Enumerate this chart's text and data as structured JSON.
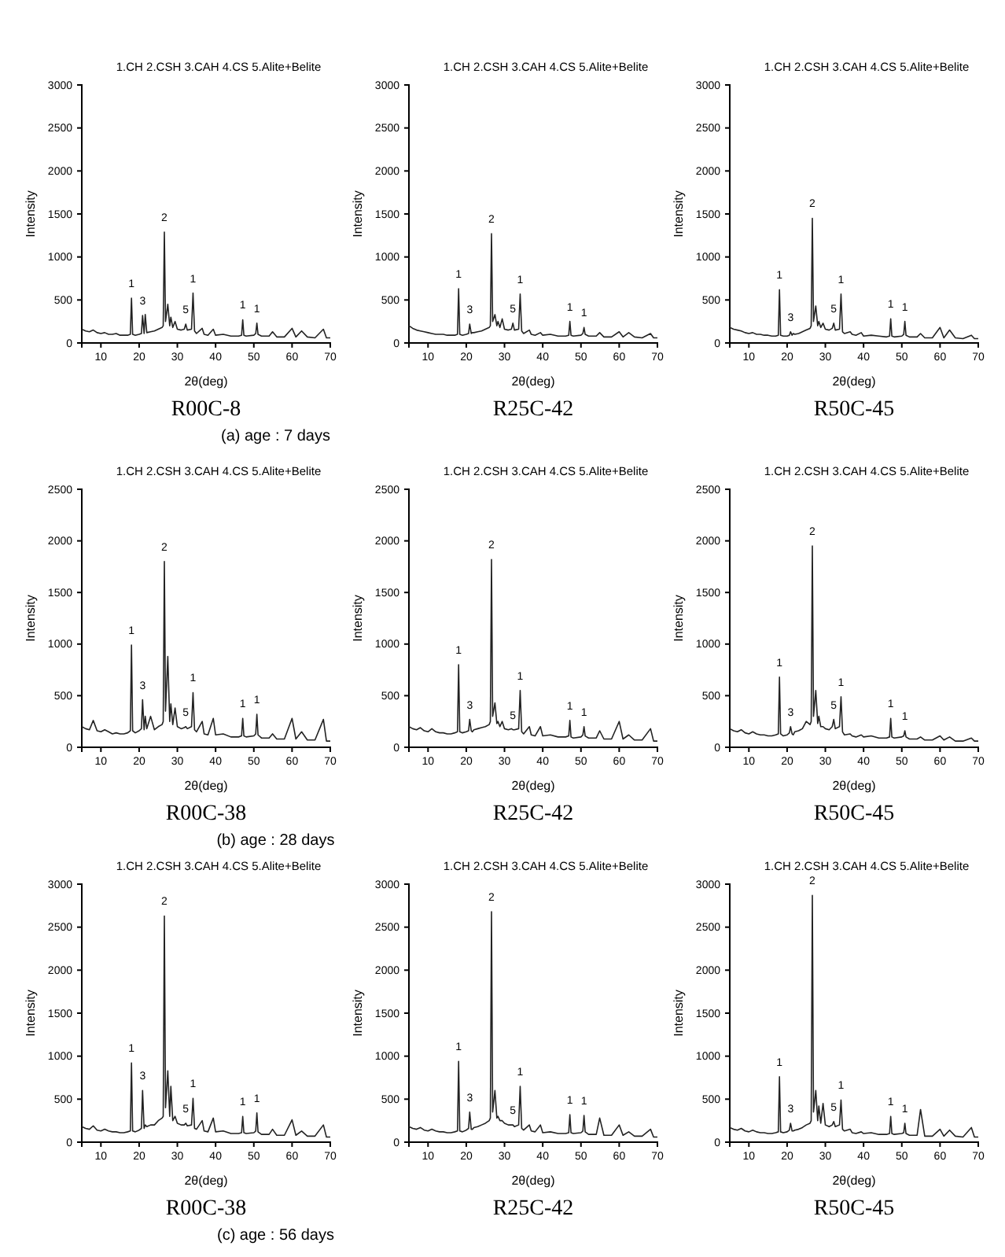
{
  "chart_data": [
    {
      "type": "line",
      "title": "R00C-8",
      "subtitle": "1.CH 2.CSH 3.CAH 4.CS 5.Alite+Belite",
      "xlabel": "2θ(deg)",
      "ylabel": "Intensity",
      "xlim": [
        5,
        70
      ],
      "ylim": [
        0,
        3000
      ],
      "xticks": [
        10,
        20,
        30,
        40,
        50,
        60,
        70
      ],
      "yticks": [
        0,
        500,
        1000,
        1500,
        2000,
        2500,
        3000
      ],
      "x": [
        5,
        6,
        7,
        8,
        9,
        10,
        11,
        12,
        13,
        14,
        15,
        16,
        17,
        17.7,
        18,
        18.3,
        19,
        20,
        20.6,
        20.9,
        21.3,
        21.6,
        22,
        23,
        24,
        25,
        26,
        26.3,
        26.6,
        26.9,
        27.5,
        28.0,
        28.3,
        28.8,
        29.4,
        30,
        31,
        31.8,
        32.2,
        32.6,
        33.7,
        34.1,
        34.5,
        35,
        36.5,
        37,
        38,
        39.4,
        40,
        42,
        44,
        46,
        46.8,
        47.1,
        47.4,
        48,
        50,
        50.5,
        50.8,
        51.1,
        52,
        54,
        54.9,
        56,
        58,
        60,
        61,
        62.5,
        64,
        66,
        68.2,
        69,
        70
      ],
      "series": [
        {
          "color": "#222222",
          "values": [
            160,
            140,
            130,
            150,
            120,
            110,
            120,
            100,
            100,
            110,
            90,
            90,
            90,
            100,
            520,
            100,
            90,
            100,
            110,
            320,
            110,
            330,
            120,
            130,
            140,
            160,
            180,
            200,
            1290,
            250,
            450,
            200,
            300,
            180,
            250,
            160,
            150,
            160,
            220,
            150,
            160,
            580,
            140,
            110,
            170,
            100,
            90,
            160,
            90,
            100,
            80,
            80,
            90,
            270,
            90,
            80,
            90,
            110,
            230,
            100,
            80,
            80,
            130,
            70,
            70,
            170,
            70,
            140,
            70,
            60,
            160,
            60,
            60
          ]
        }
      ],
      "annotations": [
        {
          "text": "1",
          "x": 18,
          "y": 520
        },
        {
          "text": "3",
          "x": 20.9,
          "y": 320
        },
        {
          "text": "2",
          "x": 26.6,
          "y": 1290
        },
        {
          "text": "5",
          "x": 32.2,
          "y": 220
        },
        {
          "text": "1",
          "x": 34.1,
          "y": 580
        },
        {
          "text": "1",
          "x": 47.1,
          "y": 270
        },
        {
          "text": "1",
          "x": 50.8,
          "y": 230
        },
        "(a) age : 7 days"
      ]
    },
    {
      "type": "line",
      "title": "R25C-42",
      "subtitle": "1.CH 2.CSH 3.CAH 4.CS 5.Alite+Belite",
      "xlabel": "2θ(deg)",
      "ylabel": "Intensity",
      "xlim": [
        5,
        70
      ],
      "ylim": [
        0,
        3000
      ],
      "xticks": [
        10,
        20,
        30,
        40,
        50,
        60,
        70
      ],
      "yticks": [
        0,
        500,
        1000,
        1500,
        2000,
        2500,
        3000
      ],
      "x": [
        5,
        6,
        7,
        8,
        9,
        10,
        11,
        12,
        13,
        14,
        15,
        16,
        17,
        17.7,
        18,
        18.3,
        19,
        20,
        20.6,
        20.9,
        21.3,
        21.6,
        22,
        23,
        24,
        25,
        26,
        26.3,
        26.6,
        26.9,
        27.5,
        28.0,
        28.3,
        28.8,
        29.4,
        30,
        31,
        31.8,
        32.2,
        32.6,
        33.7,
        34.1,
        34.5,
        35,
        36.5,
        37,
        38,
        39.4,
        40,
        42,
        44,
        46,
        46.8,
        47.1,
        47.4,
        48,
        50,
        50.5,
        50.8,
        51.1,
        52,
        54,
        54.9,
        56,
        58,
        60,
        61,
        62.5,
        64,
        66,
        68.2,
        69,
        70
      ],
      "series": [
        {
          "color": "#222222",
          "values": [
            200,
            170,
            150,
            140,
            130,
            120,
            110,
            100,
            100,
            100,
            90,
            90,
            90,
            100,
            630,
            100,
            90,
            100,
            110,
            220,
            110,
            120,
            120,
            130,
            140,
            160,
            180,
            200,
            1270,
            250,
            330,
            200,
            250,
            180,
            280,
            160,
            150,
            160,
            230,
            150,
            160,
            570,
            140,
            110,
            150,
            100,
            90,
            120,
            90,
            100,
            80,
            80,
            90,
            250,
            90,
            80,
            90,
            110,
            180,
            100,
            80,
            80,
            120,
            70,
            70,
            130,
            70,
            120,
            70,
            60,
            110,
            60,
            60
          ]
        }
      ],
      "annotations": [
        {
          "text": "1",
          "x": 18,
          "y": 630
        },
        {
          "text": "3",
          "x": 20.9,
          "y": 220
        },
        {
          "text": "2",
          "x": 26.6,
          "y": 1270
        },
        {
          "text": "5",
          "x": 32.2,
          "y": 230
        },
        {
          "text": "1",
          "x": 34.1,
          "y": 570
        },
        {
          "text": "1",
          "x": 47.1,
          "y": 250
        },
        {
          "text": "1",
          "x": 50.8,
          "y": 180
        }
      ]
    },
    {
      "type": "line",
      "title": "R50C-45",
      "subtitle": "1.CH 2.CSH 3.CAH 4.CS 5.Alite+Belite",
      "xlabel": "2θ(deg)",
      "ylabel": "Intensity",
      "xlim": [
        5,
        70
      ],
      "ylim": [
        0,
        3000
      ],
      "xticks": [
        10,
        20,
        30,
        40,
        50,
        60,
        70
      ],
      "yticks": [
        0,
        500,
        1000,
        1500,
        2000,
        2500,
        3000
      ],
      "x": [
        5,
        6,
        7,
        8,
        9,
        10,
        11,
        12,
        13,
        14,
        15,
        16,
        17,
        17.7,
        18,
        18.3,
        19,
        20,
        20.6,
        20.9,
        21.3,
        21.6,
        22,
        23,
        24,
        25,
        26,
        26.3,
        26.6,
        26.9,
        27.5,
        28.0,
        28.3,
        28.8,
        29.4,
        30,
        31,
        31.8,
        32.2,
        32.6,
        33.7,
        34.1,
        34.5,
        35,
        36.5,
        37,
        38,
        39.4,
        40,
        42,
        44,
        46,
        46.8,
        47.1,
        47.4,
        48,
        50,
        50.5,
        50.8,
        51.1,
        52,
        54,
        54.9,
        56,
        58,
        60,
        61,
        62.5,
        64,
        66,
        68.2,
        69,
        70
      ],
      "series": [
        {
          "color": "#222222",
          "values": [
            180,
            160,
            150,
            140,
            120,
            110,
            120,
            100,
            100,
            90,
            90,
            80,
            80,
            90,
            620,
            90,
            80,
            80,
            90,
            130,
            90,
            110,
            100,
            110,
            130,
            150,
            170,
            200,
            1450,
            250,
            430,
            200,
            250,
            180,
            230,
            160,
            150,
            170,
            230,
            150,
            160,
            570,
            130,
            110,
            130,
            100,
            90,
            120,
            80,
            90,
            80,
            70,
            80,
            280,
            80,
            70,
            80,
            100,
            250,
            90,
            70,
            70,
            110,
            60,
            60,
            180,
            60,
            150,
            60,
            50,
            90,
            50,
            50
          ]
        }
      ],
      "annotations": [
        {
          "text": "1",
          "x": 18,
          "y": 620
        },
        {
          "text": "3",
          "x": 20.9,
          "y": 130
        },
        {
          "text": "2",
          "x": 26.6,
          "y": 1450
        },
        {
          "text": "5",
          "x": 32.2,
          "y": 230
        },
        {
          "text": "1",
          "x": 34.1,
          "y": 570
        },
        {
          "text": "1",
          "x": 47.1,
          "y": 280
        },
        {
          "text": "1",
          "x": 50.8,
          "y": 250
        }
      ]
    },
    {
      "type": "line",
      "title": "R00C-38",
      "subtitle": "1.CH 2.CSH 3.CAH 4.CS 5.Alite+Belite",
      "xlabel": "2θ(deg)",
      "ylabel": "Intensity",
      "xlim": [
        5,
        70
      ],
      "ylim": [
        0,
        2500
      ],
      "xticks": [
        10,
        20,
        30,
        40,
        50,
        60,
        70
      ],
      "yticks": [
        0,
        500,
        1000,
        1500,
        2000,
        2500
      ],
      "x": [
        5,
        6,
        7,
        8,
        9,
        10,
        11,
        12,
        13,
        14,
        15,
        16,
        17,
        17.7,
        18,
        18.3,
        19,
        20,
        20.6,
        20.9,
        21.3,
        21.6,
        22,
        23,
        24,
        25,
        26,
        26.3,
        26.6,
        26.9,
        27.5,
        28.0,
        28.3,
        28.8,
        29.4,
        30,
        31,
        31.8,
        32.2,
        32.6,
        33.7,
        34.1,
        34.5,
        35,
        36.5,
        37,
        38,
        39.4,
        40,
        42,
        44,
        46,
        46.8,
        47.1,
        47.4,
        48,
        50,
        50.5,
        50.8,
        51.1,
        52,
        54,
        54.9,
        56,
        58,
        60,
        61,
        62.5,
        64,
        66,
        68.2,
        69,
        70
      ],
      "series": [
        {
          "color": "#222222",
          "values": [
            200,
            180,
            170,
            260,
            160,
            150,
            170,
            150,
            130,
            140,
            130,
            130,
            140,
            160,
            990,
            160,
            140,
            160,
            180,
            460,
            170,
            300,
            180,
            300,
            170,
            200,
            220,
            250,
            1800,
            350,
            880,
            250,
            420,
            220,
            380,
            200,
            180,
            190,
            200,
            180,
            200,
            530,
            170,
            150,
            250,
            130,
            120,
            280,
            120,
            130,
            100,
            100,
            110,
            280,
            110,
            100,
            110,
            130,
            320,
            120,
            90,
            90,
            130,
            80,
            80,
            280,
            80,
            150,
            70,
            70,
            270,
            60,
            60
          ]
        }
      ],
      "annotations": [
        {
          "text": "1",
          "x": 18,
          "y": 990
        },
        {
          "text": "3",
          "x": 20.9,
          "y": 460
        },
        {
          "text": "2",
          "x": 26.6,
          "y": 1800
        },
        {
          "text": "5",
          "x": 32.2,
          "y": 200
        },
        {
          "text": "1",
          "x": 34.1,
          "y": 530
        },
        {
          "text": "1",
          "x": 47.1,
          "y": 280
        },
        {
          "text": "1",
          "x": 50.8,
          "y": 320
        },
        "(b) age : 28 days"
      ]
    },
    {
      "type": "line",
      "title": "R25C-42",
      "subtitle": "1.CH 2.CSH 3.CAH 4.CS 5.Alite+Belite",
      "xlabel": "2θ(deg)",
      "ylabel": "Intensity",
      "xlim": [
        5,
        70
      ],
      "ylim": [
        0,
        2500
      ],
      "xticks": [
        10,
        20,
        30,
        40,
        50,
        60,
        70
      ],
      "yticks": [
        0,
        500,
        1000,
        1500,
        2000,
        2500
      ],
      "x": [
        5,
        6,
        7,
        8,
        9,
        10,
        11,
        12,
        13,
        14,
        15,
        16,
        17,
        17.7,
        18,
        18.3,
        19,
        20,
        20.6,
        20.9,
        21.3,
        21.6,
        22,
        23,
        24,
        25,
        26,
        26.3,
        26.6,
        26.9,
        27.5,
        28.0,
        28.3,
        28.8,
        29.4,
        30,
        31,
        31.8,
        32.2,
        32.6,
        33.7,
        34.1,
        34.5,
        35,
        36.5,
        37,
        38,
        39.4,
        40,
        42,
        44,
        46,
        46.8,
        47.1,
        47.4,
        48,
        50,
        50.5,
        50.8,
        51.1,
        52,
        54,
        54.9,
        56,
        58,
        60,
        61,
        62.5,
        64,
        66,
        68.2,
        69,
        70
      ],
      "series": [
        {
          "color": "#222222",
          "values": [
            200,
            180,
            170,
            190,
            160,
            150,
            180,
            150,
            140,
            140,
            130,
            130,
            140,
            150,
            800,
            150,
            140,
            150,
            160,
            270,
            160,
            150,
            170,
            180,
            190,
            200,
            220,
            250,
            1820,
            300,
            430,
            230,
            250,
            200,
            250,
            180,
            170,
            180,
            170,
            170,
            180,
            550,
            150,
            130,
            200,
            120,
            110,
            200,
            110,
            120,
            100,
            100,
            110,
            260,
            100,
            90,
            100,
            120,
            200,
            110,
            90,
            90,
            160,
            80,
            80,
            250,
            80,
            120,
            70,
            70,
            180,
            60,
            60
          ]
        }
      ],
      "annotations": [
        {
          "text": "1",
          "x": 18,
          "y": 800
        },
        {
          "text": "3",
          "x": 20.9,
          "y": 270
        },
        {
          "text": "2",
          "x": 26.6,
          "y": 1820
        },
        {
          "text": "5",
          "x": 32.2,
          "y": 170
        },
        {
          "text": "1",
          "x": 34.1,
          "y": 550
        },
        {
          "text": "1",
          "x": 47.1,
          "y": 260
        },
        {
          "text": "1",
          "x": 50.8,
          "y": 200
        }
      ]
    },
    {
      "type": "line",
      "title": "R50C-45",
      "subtitle": "1.CH 2.CSH 3.CAH 4.CS 5.Alite+Belite",
      "xlabel": "2θ(deg)",
      "ylabel": "Intensity",
      "xlim": [
        5,
        70
      ],
      "ylim": [
        0,
        2500
      ],
      "xticks": [
        10,
        20,
        30,
        40,
        50,
        60,
        70
      ],
      "yticks": [
        0,
        500,
        1000,
        1500,
        2000,
        2500
      ],
      "x": [
        5,
        6,
        7,
        8,
        9,
        10,
        11,
        12,
        13,
        14,
        15,
        16,
        17,
        17.7,
        18,
        18.3,
        19,
        20,
        20.6,
        20.9,
        21.3,
        21.6,
        22,
        23,
        24,
        25,
        26,
        26.3,
        26.6,
        26.9,
        27.5,
        28.0,
        28.3,
        28.8,
        29.4,
        30,
        31,
        31.8,
        32.2,
        32.6,
        33.7,
        34.1,
        34.5,
        35,
        36.5,
        37,
        38,
        39.4,
        40,
        42,
        44,
        46,
        46.8,
        47.1,
        47.4,
        48,
        50,
        50.5,
        50.8,
        51.1,
        52,
        54,
        54.9,
        56,
        58,
        60,
        61,
        62.5,
        64,
        66,
        68.2,
        69,
        70
      ],
      "series": [
        {
          "color": "#222222",
          "values": [
            180,
            160,
            150,
            170,
            140,
            130,
            150,
            130,
            120,
            120,
            110,
            110,
            120,
            130,
            680,
            130,
            110,
            120,
            140,
            200,
            130,
            120,
            150,
            160,
            180,
            250,
            220,
            250,
            1950,
            300,
            550,
            230,
            300,
            200,
            200,
            180,
            170,
            200,
            270,
            180,
            200,
            490,
            150,
            120,
            130,
            110,
            100,
            120,
            100,
            110,
            90,
            90,
            100,
            280,
            100,
            90,
            100,
            110,
            160,
            100,
            80,
            80,
            100,
            70,
            70,
            110,
            70,
            100,
            60,
            60,
            90,
            60,
            60
          ]
        }
      ],
      "annotations": [
        {
          "text": "1",
          "x": 18,
          "y": 680
        },
        {
          "text": "3",
          "x": 20.9,
          "y": 200
        },
        {
          "text": "2",
          "x": 26.6,
          "y": 1950
        },
        {
          "text": "5",
          "x": 32.2,
          "y": 270
        },
        {
          "text": "1",
          "x": 34.1,
          "y": 490
        },
        {
          "text": "1",
          "x": 47.1,
          "y": 280
        },
        {
          "text": "1",
          "x": 50.8,
          "y": 160
        }
      ]
    },
    {
      "type": "line",
      "title": "R00C-38",
      "subtitle": "1.CH 2.CSH 3.CAH 4.CS 5.Alite+Belite",
      "xlabel": "2θ(deg)",
      "ylabel": "Intensity",
      "xlim": [
        5,
        70
      ],
      "ylim": [
        0,
        3000
      ],
      "xticks": [
        10,
        20,
        30,
        40,
        50,
        60,
        70
      ],
      "yticks": [
        0,
        500,
        1000,
        1500,
        2000,
        2500,
        3000
      ],
      "x": [
        5,
        6,
        7,
        8,
        9,
        10,
        11,
        12,
        13,
        14,
        15,
        16,
        17,
        17.7,
        18,
        18.3,
        19,
        20,
        20.6,
        20.9,
        21.3,
        21.6,
        22,
        23,
        24,
        25,
        26,
        26.3,
        26.6,
        26.9,
        27.5,
        28.0,
        28.3,
        28.8,
        29.4,
        30,
        31,
        31.8,
        32.2,
        32.6,
        33.7,
        34.1,
        34.5,
        35,
        36.5,
        37,
        38,
        39.4,
        40,
        42,
        44,
        46,
        46.8,
        47.1,
        47.4,
        48,
        50,
        50.5,
        50.8,
        51.1,
        52,
        54,
        54.9,
        56,
        58,
        60,
        61,
        62.5,
        64,
        66,
        68.2,
        69,
        70
      ],
      "series": [
        {
          "color": "#222222",
          "values": [
            180,
            160,
            150,
            190,
            140,
            130,
            150,
            130,
            120,
            120,
            110,
            110,
            120,
            130,
            920,
            130,
            120,
            140,
            160,
            600,
            160,
            200,
            180,
            200,
            200,
            250,
            280,
            300,
            2630,
            400,
            830,
            300,
            650,
            250,
            300,
            220,
            200,
            200,
            220,
            190,
            200,
            510,
            160,
            150,
            250,
            130,
            120,
            280,
            120,
            130,
            100,
            100,
            110,
            300,
            110,
            100,
            110,
            130,
            340,
            120,
            90,
            90,
            150,
            80,
            80,
            260,
            80,
            130,
            70,
            70,
            200,
            60,
            60
          ]
        }
      ],
      "annotations": [
        {
          "text": "1",
          "x": 18,
          "y": 920
        },
        {
          "text": "3",
          "x": 20.9,
          "y": 600
        },
        {
          "text": "2",
          "x": 26.6,
          "y": 2630
        },
        {
          "text": "5",
          "x": 32.2,
          "y": 220
        },
        {
          "text": "1",
          "x": 34.1,
          "y": 510
        },
        {
          "text": "1",
          "x": 47.1,
          "y": 300
        },
        {
          "text": "1",
          "x": 50.8,
          "y": 340
        },
        "(c) age : 56 days"
      ]
    },
    {
      "type": "line",
      "title": "R25C-42",
      "subtitle": "1.CH 2.CSH 3.CAH 4.CS 5.Alite+Belite",
      "xlabel": "2θ(deg)",
      "ylabel": "Intensity",
      "xlim": [
        5,
        70
      ],
      "ylim": [
        0,
        3000
      ],
      "xticks": [
        10,
        20,
        30,
        40,
        50,
        60,
        70
      ],
      "yticks": [
        0,
        500,
        1000,
        1500,
        2000,
        2500,
        3000
      ],
      "x": [
        5,
        6,
        7,
        8,
        9,
        10,
        11,
        12,
        13,
        14,
        15,
        16,
        17,
        17.7,
        18,
        18.3,
        19,
        20,
        20.6,
        20.9,
        21.3,
        21.6,
        22,
        23,
        24,
        25,
        26,
        26.3,
        26.6,
        26.9,
        27.5,
        28.0,
        28.3,
        28.8,
        29.4,
        30,
        31,
        31.8,
        32.2,
        32.6,
        33.7,
        34.1,
        34.5,
        35,
        36.5,
        37,
        38,
        39.4,
        40,
        42,
        44,
        46,
        46.8,
        47.1,
        47.4,
        48,
        50,
        50.5,
        50.8,
        51.1,
        52,
        54,
        54.9,
        56,
        58,
        60,
        61,
        62.5,
        64,
        66,
        68.2,
        69,
        70
      ],
      "series": [
        {
          "color": "#222222",
          "values": [
            180,
            160,
            150,
            170,
            140,
            130,
            150,
            130,
            120,
            120,
            110,
            110,
            120,
            130,
            940,
            130,
            120,
            140,
            160,
            350,
            150,
            150,
            170,
            180,
            200,
            220,
            250,
            280,
            2680,
            350,
            600,
            280,
            300,
            250,
            250,
            220,
            200,
            200,
            200,
            180,
            200,
            650,
            160,
            140,
            200,
            130,
            120,
            200,
            110,
            120,
            100,
            100,
            110,
            320,
            110,
            100,
            110,
            130,
            310,
            120,
            90,
            90,
            280,
            80,
            80,
            200,
            80,
            120,
            70,
            70,
            150,
            60,
            60
          ]
        }
      ],
      "annotations": [
        {
          "text": "1",
          "x": 18,
          "y": 940
        },
        {
          "text": "3",
          "x": 20.9,
          "y": 350
        },
        {
          "text": "2",
          "x": 26.6,
          "y": 2680
        },
        {
          "text": "5",
          "x": 32.2,
          "y": 200
        },
        {
          "text": "1",
          "x": 34.1,
          "y": 650
        },
        {
          "text": "1",
          "x": 47.1,
          "y": 320
        },
        {
          "text": "1",
          "x": 50.8,
          "y": 310
        }
      ]
    },
    {
      "type": "line",
      "title": "R50C-45",
      "subtitle": "1.CH 2.CSH 3.CAH 4.CS 5.Alite+Belite",
      "xlabel": "2θ(deg)",
      "ylabel": "Intensity",
      "xlim": [
        5,
        70
      ],
      "ylim": [
        0,
        3000
      ],
      "xticks": [
        10,
        20,
        30,
        40,
        50,
        60,
        70
      ],
      "yticks": [
        0,
        500,
        1000,
        1500,
        2000,
        2500,
        3000
      ],
      "x": [
        5,
        6,
        7,
        8,
        9,
        10,
        11,
        12,
        13,
        14,
        15,
        16,
        17,
        17.7,
        18,
        18.3,
        19,
        20,
        20.6,
        20.9,
        21.3,
        21.6,
        22,
        23,
        24,
        25,
        26,
        26.3,
        26.6,
        26.9,
        27.5,
        28.0,
        28.3,
        28.8,
        29.4,
        30,
        31,
        31.8,
        32.2,
        32.6,
        33.7,
        34.1,
        34.5,
        35,
        36.5,
        37,
        38,
        39.4,
        40,
        42,
        44,
        46,
        46.8,
        47.1,
        47.4,
        48,
        50,
        50.5,
        50.8,
        51.1,
        52,
        54,
        54.9,
        56,
        58,
        60,
        61,
        62.5,
        64,
        66,
        68.2,
        69,
        70
      ],
      "series": [
        {
          "color": "#222222",
          "values": [
            170,
            150,
            140,
            160,
            130,
            120,
            140,
            120,
            110,
            110,
            100,
            100,
            110,
            120,
            760,
            120,
            110,
            120,
            140,
            220,
            130,
            130,
            140,
            150,
            170,
            200,
            220,
            250,
            2870,
            350,
            600,
            250,
            420,
            220,
            450,
            200,
            180,
            200,
            240,
            180,
            200,
            490,
            150,
            130,
            150,
            110,
            100,
            120,
            100,
            110,
            90,
            90,
            100,
            300,
            100,
            90,
            100,
            110,
            220,
            100,
            80,
            80,
            380,
            70,
            70,
            150,
            70,
            140,
            70,
            60,
            170,
            60,
            60
          ]
        }
      ],
      "annotations": [
        {
          "text": "1",
          "x": 18,
          "y": 760
        },
        {
          "text": "3",
          "x": 20.9,
          "y": 220
        },
        {
          "text": "2",
          "x": 26.6,
          "y": 2870
        },
        {
          "text": "5",
          "x": 32.2,
          "y": 240
        },
        {
          "text": "1",
          "x": 34.1,
          "y": 490
        },
        {
          "text": "1",
          "x": 47.1,
          "y": 300
        },
        {
          "text": "1",
          "x": 50.8,
          "y": 220
        }
      ]
    }
  ]
}
